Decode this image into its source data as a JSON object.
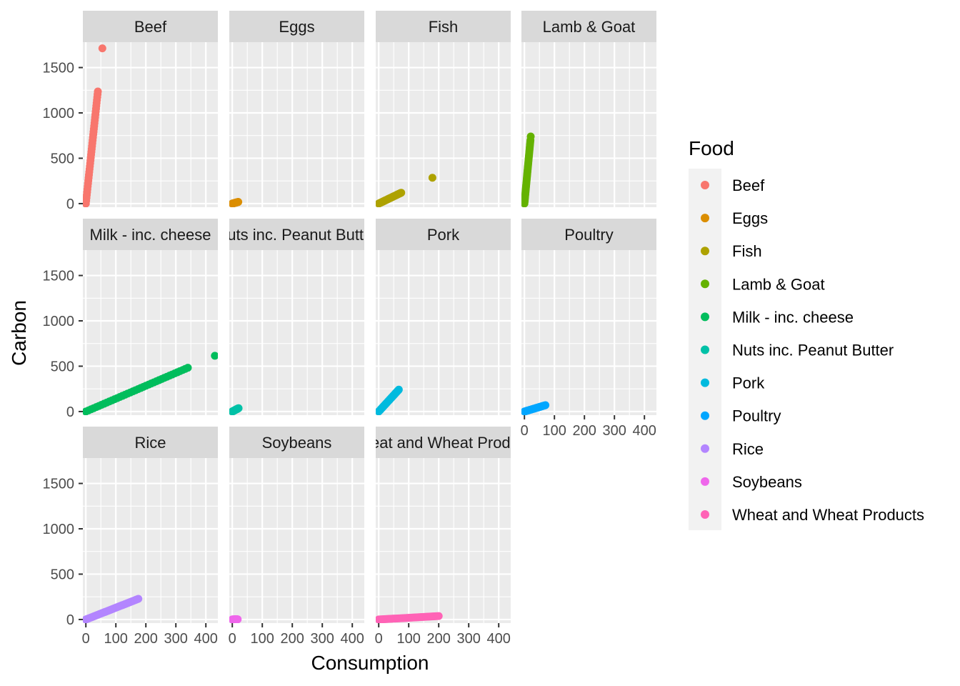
{
  "chart_data": {
    "type": "scatter",
    "layout": "facet_wrap",
    "xlabel": "Consumption",
    "ylabel": "Carbon",
    "xlim": [
      -10,
      440
    ],
    "ylim": [
      -40,
      1780
    ],
    "x_ticks": [
      0,
      100,
      200,
      300,
      400
    ],
    "x_tick_labels": [
      "0",
      "100",
      "200",
      "300",
      "400"
    ],
    "y_ticks": [
      0,
      500,
      1000,
      1500
    ],
    "y_tick_labels": [
      "0",
      "500",
      "1000",
      "1500"
    ],
    "grid": true,
    "legend": {
      "title": "Food",
      "position": "right",
      "entries": [
        {
          "label": "Beef",
          "color": "#F8766D"
        },
        {
          "label": "Eggs",
          "color": "#DB8E00"
        },
        {
          "label": "Fish",
          "color": "#AEA200"
        },
        {
          "label": "Lamb & Goat",
          "color": "#64B200"
        },
        {
          "label": "Milk - inc. cheese",
          "color": "#00BD5C"
        },
        {
          "label": "Nuts inc. Peanut Butter",
          "color": "#00C1A7"
        },
        {
          "label": "Pork",
          "color": "#00BADE"
        },
        {
          "label": "Poultry",
          "color": "#00A6FF"
        },
        {
          "label": "Rice",
          "color": "#B385FF"
        },
        {
          "label": "Soybeans",
          "color": "#EF67EB"
        },
        {
          "label": "Wheat and Wheat Products",
          "color": "#FF63B6"
        }
      ]
    },
    "panels": [
      {
        "name": "Beef",
        "strip_label": "Beef",
        "color": "#F8766D",
        "x_range": [
          0,
          40
        ],
        "slope": 30.9,
        "outliers": [
          [
            55,
            1712
          ]
        ]
      },
      {
        "name": "Eggs",
        "strip_label": "Eggs",
        "color": "#DB8E00",
        "x_range": [
          0,
          20
        ],
        "slope": 0.92,
        "outliers": []
      },
      {
        "name": "Fish",
        "strip_label": "Fish",
        "color": "#AEA200",
        "x_range": [
          0,
          75
        ],
        "slope": 1.6,
        "outliers": [
          [
            179,
            285
          ]
        ]
      },
      {
        "name": "Lamb & Goat",
        "strip_label": "Lamb & Goat",
        "color": "#64B200",
        "x_range": [
          0,
          20
        ],
        "slope": 35.0,
        "outliers": [
          [
            21,
            740
          ]
        ]
      },
      {
        "name": "Milk - inc. cheese",
        "strip_label": "Milk - inc. cheese",
        "color": "#00BD5C",
        "x_range": [
          0,
          340
        ],
        "slope": 1.42,
        "outliers": [
          [
            430,
            615
          ]
        ]
      },
      {
        "name": "Nuts inc. Peanut Butter",
        "strip_label": "Nuts inc. Peanut Butter",
        "color": "#00C1A7",
        "x_range": [
          0,
          21
        ],
        "slope": 1.76,
        "outliers": []
      },
      {
        "name": "Pork",
        "strip_label": "Pork",
        "color": "#00BADE",
        "x_range": [
          0,
          67
        ],
        "slope": 3.6,
        "outliers": []
      },
      {
        "name": "Poultry",
        "strip_label": "Poultry",
        "color": "#00A6FF",
        "x_range": [
          0,
          70
        ],
        "slope": 1.0,
        "outliers": []
      },
      {
        "name": "Rice",
        "strip_label": "Rice",
        "color": "#B385FF",
        "x_range": [
          0,
          175
        ],
        "slope": 1.3,
        "outliers": []
      },
      {
        "name": "Soybeans",
        "strip_label": "Soybeans",
        "color": "#EF67EB",
        "x_range": [
          0,
          18
        ],
        "slope": 0.1,
        "outliers": []
      },
      {
        "name": "Wheat and Wheat Products",
        "strip_label": "Wheat and Wheat Products",
        "color": "#FF63B6",
        "x_range": [
          0,
          200
        ],
        "slope": 0.19,
        "outliers": []
      }
    ]
  }
}
